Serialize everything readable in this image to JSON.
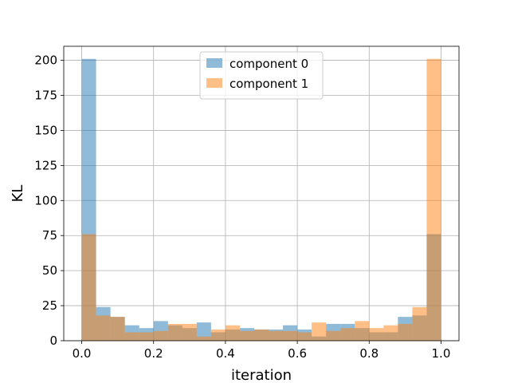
{
  "chart_data": {
    "type": "bar",
    "title": "",
    "xlabel": "iteration",
    "ylabel": "KL",
    "xlim": [
      -0.05,
      1.05
    ],
    "ylim": [
      0,
      210
    ],
    "xticks": [
      "0.0",
      "0.2",
      "0.4",
      "0.6",
      "0.8",
      "1.0"
    ],
    "yticks": [
      "0",
      "25",
      "50",
      "75",
      "100",
      "125",
      "150",
      "175",
      "200"
    ],
    "grid": true,
    "legend_position": "top-center",
    "bin_edges": [
      0.0,
      0.04,
      0.08,
      0.12,
      0.16,
      0.2,
      0.24,
      0.28,
      0.32,
      0.36,
      0.4,
      0.44,
      0.48,
      0.52,
      0.56,
      0.6,
      0.64,
      0.68,
      0.72,
      0.76,
      0.8,
      0.84,
      0.88,
      0.92,
      0.96,
      1.0
    ],
    "series": [
      {
        "name": "component 0",
        "color": "#1f77b4",
        "values": [
          201,
          24,
          17,
          11,
          9,
          14,
          11,
          9,
          13,
          6,
          8,
          9,
          8,
          8,
          11,
          8,
          3,
          12,
          12,
          9,
          6,
          6,
          17,
          18,
          76
        ]
      },
      {
        "name": "component 1",
        "color": "#ff7f0e",
        "values": [
          76,
          18,
          17,
          6,
          6,
          7,
          12,
          12,
          3,
          8,
          11,
          7,
          8,
          7,
          7,
          6,
          13,
          7,
          9,
          14,
          9,
          11,
          12,
          24,
          201
        ]
      }
    ]
  }
}
